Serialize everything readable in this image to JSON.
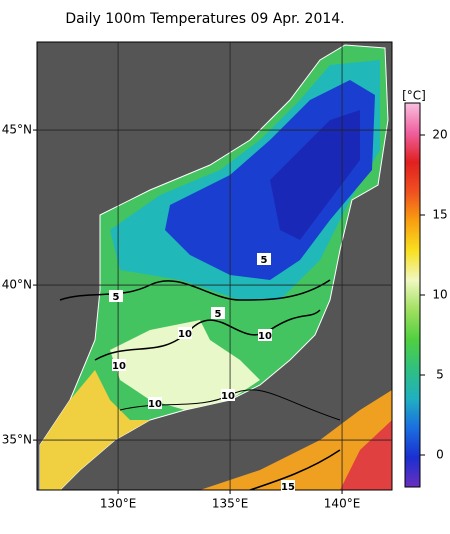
{
  "title": "Daily 100m Temperatures 09 Apr. 2014.",
  "map": {
    "xlim": [
      126.38,
      142.23
    ],
    "ylim": [
      33.39,
      47.84
    ],
    "xticks": [
      {
        "value": 130,
        "label": "130°E"
      },
      {
        "value": 135,
        "label": "135°E"
      },
      {
        "value": 140,
        "label": "140°E"
      }
    ],
    "yticks": [
      {
        "value": 35,
        "label": "35°N"
      },
      {
        "value": 40,
        "label": "40°N"
      },
      {
        "value": 45,
        "label": "45°N"
      }
    ],
    "grid": true
  },
  "colorbar": {
    "label": "[°C]",
    "lim": [
      -2,
      22
    ],
    "ticks": [
      0,
      5,
      10,
      15,
      20
    ],
    "colors": [
      "#6a2fc0",
      "#1a2fd0",
      "#1a6fe0",
      "#20b0c0",
      "#30c080",
      "#50d040",
      "#a0e060",
      "#f0f8c0",
      "#f8e020",
      "#f8a010",
      "#f05020",
      "#e02020",
      "#f060a0",
      "#f8c0e0"
    ]
  },
  "contour_labels": [
    5,
    5,
    5,
    10,
    10,
    10,
    10,
    10,
    15
  ]
}
